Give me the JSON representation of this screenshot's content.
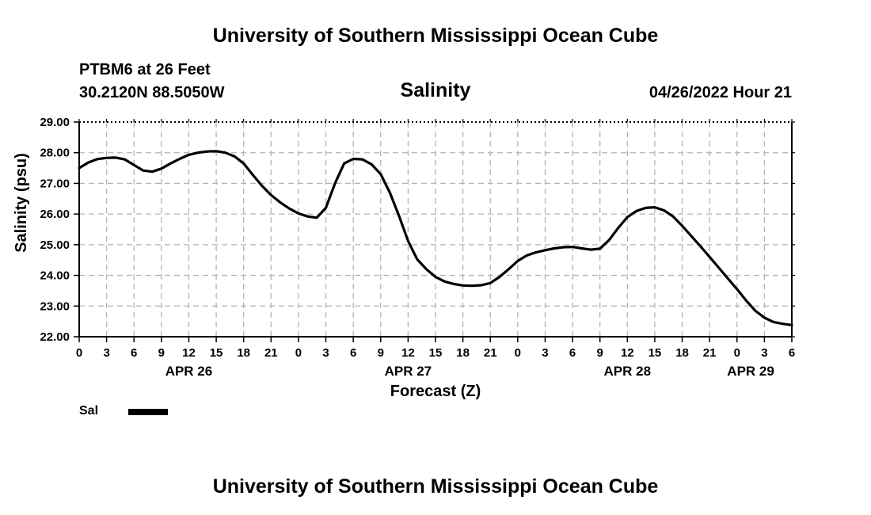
{
  "header": {
    "title": "University of Southern Mississippi Ocean Cube",
    "station": "PTBM6 at 26 Feet",
    "coords": "30.2120N  88.5050W",
    "subtitle": "Salinity",
    "timestamp": "04/26/2022 Hour 21"
  },
  "footer": {
    "title": "University of Southern Mississippi Ocean Cube"
  },
  "legend": {
    "label": "Sal"
  },
  "chart_data": {
    "type": "line",
    "title": "Salinity",
    "xlabel": "Forecast (Z)",
    "ylabel": "Salinity (psu)",
    "ylim": [
      22.0,
      29.0
    ],
    "yticks": [
      "22.00",
      "23.00",
      "24.00",
      "25.00",
      "26.00",
      "27.00",
      "28.00",
      "29.00"
    ],
    "xlim": [
      0,
      78
    ],
    "xticks": [
      "0",
      "3",
      "6",
      "9",
      "12",
      "15",
      "18",
      "21",
      "0",
      "3",
      "6",
      "9",
      "12",
      "15",
      "18",
      "21",
      "0",
      "3",
      "6",
      "9",
      "12",
      "15",
      "18",
      "21",
      "0",
      "3",
      "6"
    ],
    "date_labels": [
      {
        "label": "APR 26",
        "at_tick": 4
      },
      {
        "label": "APR 27",
        "at_tick": 12
      },
      {
        "label": "APR 28",
        "at_tick": 20
      },
      {
        "label": "APR 29",
        "at_tick": 24.5
      }
    ],
    "grid": true,
    "series": [
      {
        "name": "Sal",
        "color": "#000000",
        "x": [
          0,
          1,
          2,
          3,
          4,
          5,
          6,
          7,
          8,
          9,
          10,
          11,
          12,
          13,
          14,
          15,
          16,
          17,
          18,
          19,
          20,
          21,
          22,
          23,
          24,
          25,
          26,
          27,
          28,
          29,
          30,
          31,
          32,
          33,
          34,
          35,
          36,
          37,
          38,
          39,
          40,
          41,
          42,
          43,
          44,
          45,
          46,
          47,
          48,
          49,
          50,
          51,
          52,
          53,
          54,
          55,
          56,
          57,
          58,
          59,
          60,
          61,
          62,
          63,
          64,
          65,
          66,
          67,
          68,
          69,
          70,
          71,
          72,
          73,
          74,
          75,
          76,
          77,
          78
        ],
        "values": [
          27.5,
          27.68,
          27.79,
          27.83,
          27.84,
          27.78,
          27.6,
          27.42,
          27.38,
          27.48,
          27.65,
          27.8,
          27.93,
          28.0,
          28.04,
          28.05,
          28.0,
          27.88,
          27.65,
          27.28,
          26.92,
          26.62,
          26.38,
          26.18,
          26.02,
          25.92,
          25.88,
          26.2,
          27.0,
          27.65,
          27.8,
          27.78,
          27.62,
          27.3,
          26.7,
          25.95,
          25.12,
          24.52,
          24.2,
          23.95,
          23.8,
          23.72,
          23.67,
          23.66,
          23.68,
          23.75,
          23.95,
          24.2,
          24.47,
          24.65,
          24.75,
          24.82,
          24.88,
          24.92,
          24.93,
          24.88,
          24.84,
          24.87,
          25.15,
          25.55,
          25.9,
          26.1,
          26.2,
          26.22,
          26.12,
          25.92,
          25.62,
          25.28,
          24.95,
          24.6,
          24.25,
          23.9,
          23.55,
          23.18,
          22.85,
          22.62,
          22.48,
          22.42,
          22.38
        ]
      }
    ]
  }
}
